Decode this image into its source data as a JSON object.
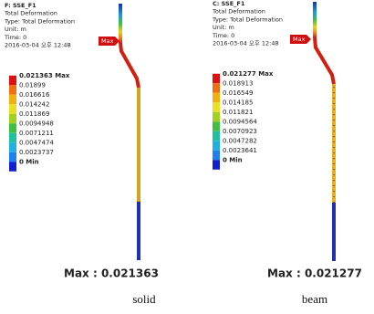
{
  "panels": [
    {
      "header": [
        "F: SSE_F1",
        "Total Deformation",
        "Type: Total Deformation",
        "Unit: m",
        "Time: 0",
        "2016-03-04 오후 12:48"
      ],
      "legend": [
        "0.021363 Max",
        "0.01899",
        "0.016616",
        "0.014242",
        "0.011869",
        "0.0094948",
        "0.0071211",
        "0.0047474",
        "0.0023737",
        "0 Min"
      ],
      "tag": "Max",
      "caption": "Max : 0.021363",
      "label": "solid"
    },
    {
      "header": [
        "C: SSE_F1",
        "Total Deformation",
        "Type: Total Deformation",
        "Unit: m",
        "Time: 0",
        "2016-03-04 오후 12:48"
      ],
      "legend": [
        "0.021277 Max",
        "0.018913",
        "0.016549",
        "0.014185",
        "0.011821",
        "0.0094564",
        "0.0070923",
        "0.0047282",
        "0.0023641",
        "0 Min"
      ],
      "tag": "Max",
      "caption": "Max : 0.021277",
      "label": "beam"
    }
  ]
}
